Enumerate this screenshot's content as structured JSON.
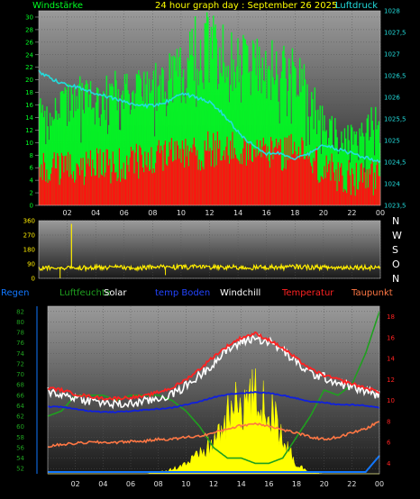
{
  "colors": {
    "wind": "#00ff22",
    "gust": "#00ff22",
    "avgwind": "#ff1010",
    "pressure": "#22dddd",
    "direction": "#ffee00",
    "regen": "#1177ff",
    "humidity": "#1fa01f",
    "solar": "#ffff00",
    "tempBoden": "#1020dd",
    "windchill": "#ffffff",
    "temperatur": "#ff2222",
    "taupunkt": "#ff7744"
  },
  "header": {
    "windstaerke": "Windstärke",
    "title": "24 hour graph day : September 26 2025",
    "luftdruck": "Luftdruck"
  },
  "legend2": {
    "regen": "Regen",
    "luftfeuchte": "Luftfeuchte",
    "solar": "Solar",
    "tempBoden": "temp Boden",
    "windchill": "Windchill",
    "temperatur": "Temperatur",
    "taupunkt": "Taupunkt"
  },
  "compass": [
    "N",
    "W",
    "S",
    "O",
    "N"
  ],
  "chart_data": [
    {
      "type": "bar",
      "id": "wind-pressure",
      "x": [
        0,
        1,
        2,
        3,
        4,
        5,
        6,
        7,
        8,
        9,
        10,
        11,
        12,
        13,
        14,
        15,
        16,
        17,
        18,
        19,
        20,
        21,
        22,
        23,
        24
      ],
      "xticks": [
        "02",
        "04",
        "06",
        "08",
        "10",
        "12",
        "14",
        "16",
        "18",
        "20",
        "22",
        "00"
      ],
      "yleft_ticks": [
        0,
        2,
        4,
        6,
        8,
        10,
        12,
        14,
        16,
        18,
        20,
        22,
        24,
        26,
        28,
        30
      ],
      "yright_ticks": [
        "1023,5",
        "1024",
        "1024,5",
        "1025",
        "1025,5",
        "1026",
        "1026,5",
        "1027",
        "1027,5",
        "1028"
      ],
      "ylim_left": [
        0,
        31
      ],
      "ylim_right": [
        1023.5,
        1028
      ],
      "series": [
        {
          "name": "Windstärke",
          "values": [
            12,
            11,
            12,
            13,
            13,
            13,
            14,
            14,
            14,
            15,
            15,
            17,
            18,
            16,
            16,
            16,
            15,
            15,
            14,
            11,
            8,
            7,
            6,
            8,
            10
          ]
        },
        {
          "name": "Luftdruck",
          "values": [
            1026.6,
            1026.4,
            1026.3,
            1026.2,
            1026.1,
            1026.0,
            1025.9,
            1025.8,
            1025.8,
            1025.9,
            1026.1,
            1026.0,
            1025.9,
            1025.6,
            1025.2,
            1024.9,
            1024.7,
            1024.7,
            1024.6,
            1024.7,
            1024.9,
            1024.8,
            1024.7,
            1024.6,
            1024.5
          ]
        }
      ],
      "avgwind": [
        6,
        6,
        6,
        6,
        7,
        6,
        7,
        7,
        7,
        8,
        8,
        8,
        9,
        9,
        9,
        9,
        8,
        8,
        9,
        7,
        6,
        5,
        4,
        4,
        5
      ],
      "gust_peaks": [
        18,
        17,
        20,
        21,
        19,
        22,
        21,
        22,
        23,
        24,
        26,
        31,
        32,
        29,
        27,
        28,
        27,
        26,
        25,
        21,
        16,
        14,
        13,
        15,
        20
      ]
    },
    {
      "type": "scatter",
      "id": "direction",
      "yticks": [
        0,
        90,
        180,
        270,
        360
      ],
      "ylim": [
        0,
        360
      ],
      "series": [
        {
          "name": "direction",
          "values": [
            60,
            70,
            65,
            65,
            68,
            70,
            65,
            66,
            70,
            72,
            68,
            70,
            72,
            70,
            68,
            66,
            70,
            68,
            72,
            70,
            68,
            66,
            70,
            68,
            70
          ]
        }
      ],
      "spike": {
        "x": 2.3,
        "y": 340
      }
    },
    {
      "type": "line",
      "id": "temperature",
      "xticks": [
        "02",
        "04",
        "06",
        "08",
        "10",
        "12",
        "14",
        "16",
        "18",
        "20",
        "22",
        "00"
      ],
      "yleft_ticks": [
        52,
        54,
        56,
        58,
        60,
        62,
        64,
        66,
        68,
        70,
        72,
        74,
        76,
        78,
        80,
        82
      ],
      "yright_ticks": [
        4,
        6,
        8,
        10,
        12,
        14,
        16,
        18
      ],
      "ylim_left": [
        51,
        83
      ],
      "ylim_right": [
        3,
        19
      ],
      "series": [
        {
          "name": "Temperatur",
          "values": [
            11.2,
            11.0,
            10.6,
            10.4,
            10.2,
            10.2,
            10.3,
            10.4,
            10.8,
            11.2,
            12.0,
            13.0,
            14.2,
            15.2,
            16.0,
            16.4,
            15.8,
            15.0,
            14.0,
            13.0,
            12.4,
            12.0,
            11.6,
            11.2,
            10.8
          ]
        },
        {
          "name": "Windchill",
          "values": [
            10.9,
            10.6,
            10.3,
            10.0,
            9.8,
            9.6,
            9.7,
            9.9,
            10.2,
            10.6,
            11.4,
            12.4,
            13.6,
            14.8,
            15.6,
            16.0,
            15.6,
            14.8,
            13.6,
            12.6,
            12.2,
            11.7,
            11.3,
            10.9,
            10.5
          ]
        },
        {
          "name": "temp Boden",
          "values": [
            9.4,
            9.4,
            9.2,
            9.0,
            8.9,
            8.9,
            9.0,
            9.1,
            9.2,
            9.3,
            9.6,
            9.9,
            10.3,
            10.6,
            10.7,
            10.8,
            10.7,
            10.5,
            10.2,
            9.9,
            9.8,
            9.6,
            9.6,
            9.5,
            9.3
          ]
        },
        {
          "name": "Taupunkt",
          "values": [
            5.6,
            5.8,
            5.9,
            6.0,
            6.0,
            6.0,
            6.1,
            6.1,
            6.3,
            6.3,
            6.5,
            6.6,
            6.9,
            7.3,
            7.6,
            7.8,
            7.6,
            7.2,
            6.9,
            6.5,
            6.3,
            6.5,
            6.9,
            7.3,
            8.0
          ]
        },
        {
          "name": "Luftfeuchte",
          "values": [
            62,
            63,
            66,
            66,
            66,
            65,
            66,
            66,
            66,
            65,
            63,
            60,
            56,
            54,
            54,
            53,
            53,
            54,
            58,
            62,
            67,
            66,
            68,
            74,
            82
          ]
        }
      ],
      "solar": [
        0,
        0,
        0,
        0,
        0,
        0,
        0,
        0,
        1,
        3,
        7,
        12,
        21,
        36,
        48,
        50,
        42,
        26,
        6,
        1,
        0,
        0,
        0,
        0,
        0
      ],
      "regen": [
        0,
        0,
        0,
        0,
        0,
        0,
        0,
        0,
        0,
        0,
        0,
        0,
        0,
        0,
        0,
        0,
        0,
        0,
        0,
        0,
        0,
        0,
        0,
        0,
        0.6
      ]
    }
  ]
}
